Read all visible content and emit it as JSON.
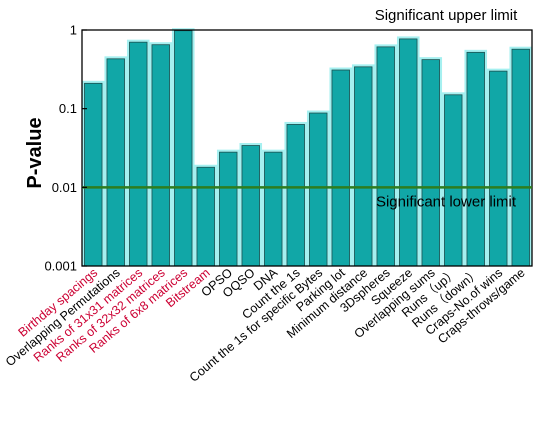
{
  "chart_data": {
    "type": "bar",
    "ylabel": "P-value",
    "xlabel": "",
    "title": "",
    "yscale": "log",
    "ylim": [
      0.001,
      1
    ],
    "yticks": [
      {
        "value": 0.001,
        "label": "0.001"
      },
      {
        "value": 0.01,
        "label": "0.01"
      },
      {
        "value": 0.1,
        "label": "0.1"
      },
      {
        "value": 1,
        "label": "1"
      }
    ],
    "categories": [
      "Birthday spacings",
      "Overlapping Permutations",
      "Ranks of 31x31 matrices",
      "Ranks of 32x32 matrices",
      "Ranks of 6x8 matrices",
      "Bitstream",
      "OPSO",
      "OQSO",
      "DNA",
      "Count the 1s",
      "Count the 1s for specific Bytes",
      "Parking lot",
      "Minimum distance",
      "3Dspheres",
      "Squeeze",
      "Overlapping sums",
      "Runs（up）",
      "Runs（down）",
      "Craps-No.of wins",
      "Craps-throws/game"
    ],
    "values": [
      0.21,
      0.43,
      0.7,
      0.65,
      0.98,
      0.018,
      0.028,
      0.034,
      0.028,
      0.063,
      0.088,
      0.31,
      0.34,
      0.61,
      0.77,
      0.42,
      0.15,
      0.52,
      0.3,
      0.57
    ],
    "label_colors": [
      "#cc0033",
      "#000000",
      "#cc0033",
      "#cc0033",
      "#cc0033",
      "#cc0033",
      "#000000",
      "#000000",
      "#000000",
      "#000000",
      "#000000",
      "#000000",
      "#000000",
      "#000000",
      "#000000",
      "#000000",
      "#000000",
      "#000000",
      "#000000",
      "#000000"
    ],
    "annotations": {
      "upper_limit_label": "Significant upper limit",
      "lower_limit_label": "Significant lower limit",
      "lower_limit_value": 0.01
    },
    "colors": {
      "bar_fill": "#11a7a7",
      "bar_stroke": "#1b4f4f",
      "bar_glow": "#7fe9e9",
      "limit_line": "#2e7d1e"
    },
    "grid": false
  }
}
